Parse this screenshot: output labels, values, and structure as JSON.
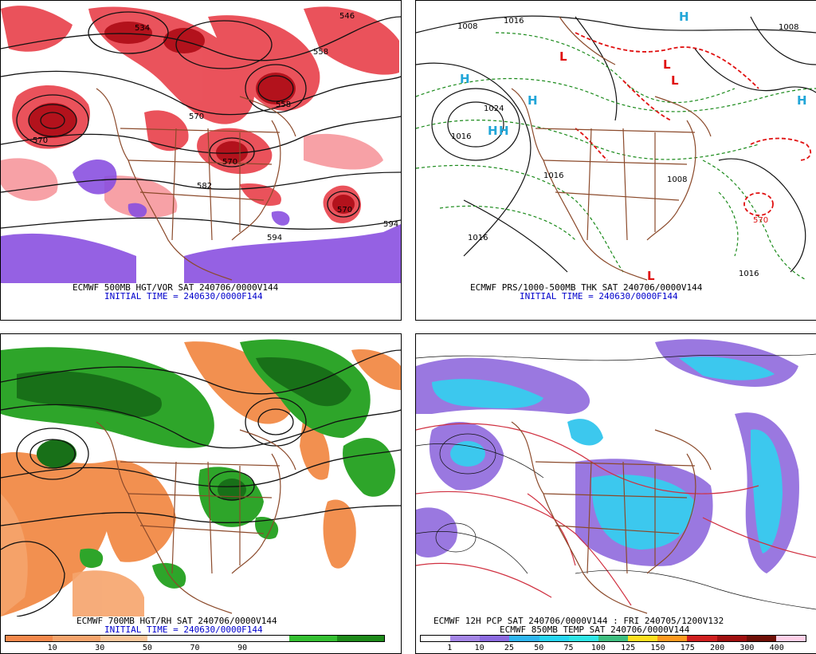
{
  "panels": {
    "p1": {
      "caption1": "ECMWF 500MB HGT/VOR SAT 240706/0000V144",
      "caption2": "INITIAL TIME = 240630/0000F144",
      "contour_labels": [
        "534",
        "546",
        "558",
        "558",
        "570",
        "570",
        "582",
        "594",
        "594",
        "570",
        "570"
      ]
    },
    "p2": {
      "caption1": "ECMWF PRS/1000-500MB THK SAT 240706/0000V144",
      "caption2": "INITIAL TIME = 240630/0000F144",
      "contour_labels": [
        "1016",
        "1008",
        "1024",
        "1016",
        "1016",
        "1008",
        "1016",
        "570",
        "1016",
        "1008"
      ]
    },
    "p3": {
      "caption1": "ECMWF 700MB HGT/RH SAT 240706/0000V144",
      "caption2": "INITIAL TIME = 240630/0000F144",
      "colorbar": {
        "colors": [
          "#f4884b",
          "#f6a46c",
          "#fac79d",
          "#ffffff",
          "#ffffff",
          "#ffffff",
          "#35c032",
          "#1e8a1a"
        ],
        "ticks": [
          "10",
          "30",
          "50",
          "70",
          "90"
        ]
      }
    },
    "p4": {
      "caption1": "ECMWF 12H PCP SAT 240706/0000V144 : FRI 240705/1200V132",
      "caption2": "ECMWF 850MB TEMP SAT 240706/0000V144",
      "colorbar": {
        "colors": [
          "#ffffff",
          "#a586e6",
          "#8c6be0",
          "#30b6f0",
          "#28d6f2",
          "#30e6e6",
          "#3fbf80",
          "#ffe020",
          "#ff9a20",
          "#d02020",
          "#a01010",
          "#701008",
          "#ffd0e8"
        ],
        "ticks": [
          "1",
          "10",
          "25",
          "50",
          "75",
          "100",
          "125",
          "150",
          "175",
          "200",
          "300",
          "400"
        ]
      }
    }
  },
  "colors": {
    "vort_red": "#e0303a",
    "vort_dark": "#b3121c",
    "vort_purple": "#8a50e0",
    "border_brown": "#8b4a2b",
    "thk_red": "#e01010",
    "thk_green": "#1a8a1a",
    "h_blue": "#22a6d8",
    "rh_green": "#2ea52a",
    "rh_dark": "#187018",
    "rh_orange": "#f29050",
    "pcp_purple": "#9a78e0",
    "pcp_cyan": "#3cc8ee",
    "temp_red": "#d03040"
  }
}
